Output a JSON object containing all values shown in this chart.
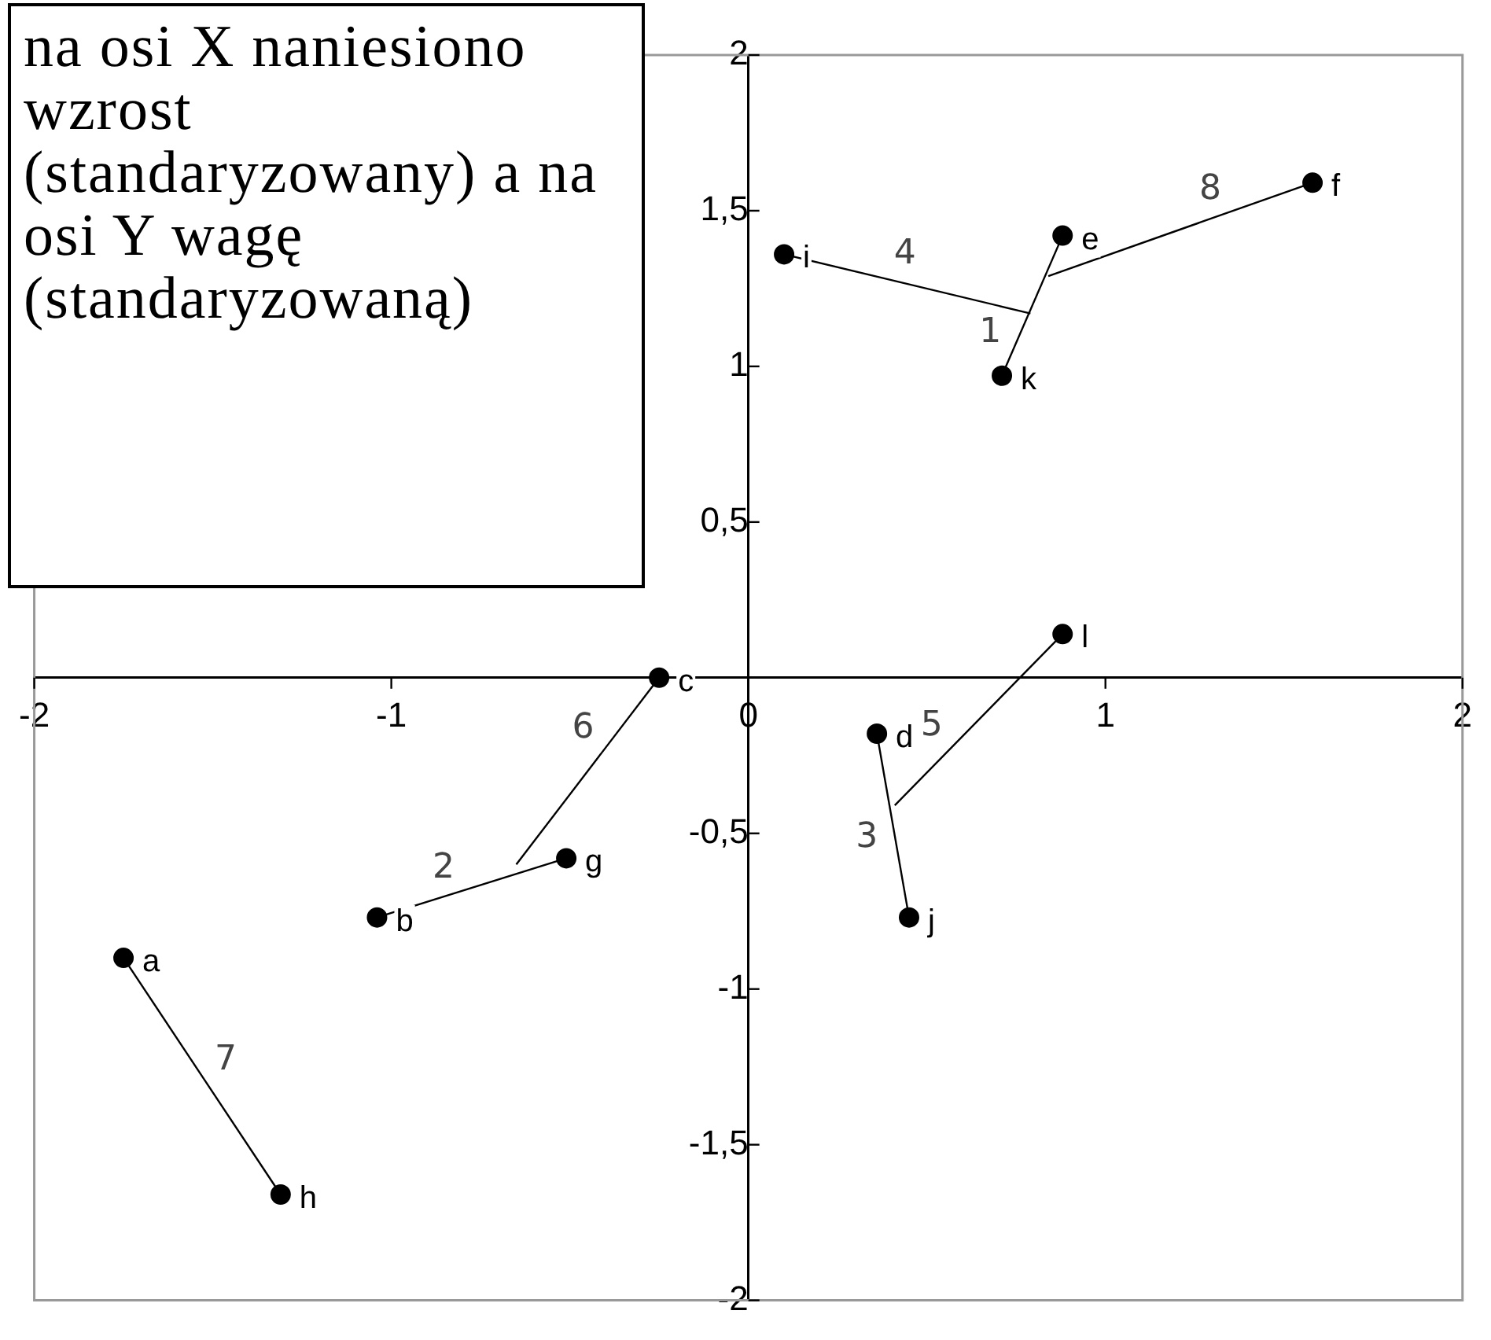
{
  "chart_data": {
    "type": "scatter",
    "xlim": [
      -2,
      2
    ],
    "ylim": [
      -2,
      2
    ],
    "xticks": [
      -2,
      -1,
      {
        "value": 0,
        "label": "0"
      },
      1,
      2
    ],
    "yticks": [
      -2,
      {
        "value": -1.5,
        "label": "-1,5"
      },
      -1,
      {
        "value": -0.5,
        "label": "-0,5"
      },
      {
        "value": 0,
        "label": null
      },
      {
        "value": 0.5,
        "label": "0,5"
      },
      1,
      {
        "value": 1.5,
        "label": "1,5"
      },
      2
    ],
    "grid": false,
    "legend": false,
    "marker": "circle",
    "series": [
      {
        "color": "#000000",
        "x": [
          -1.75,
          -1.04,
          -0.25,
          0.36,
          0.88,
          1.58,
          -0.51,
          -1.31,
          0.1,
          0.45,
          0.71,
          0.88
        ],
        "values": [
          -0.9,
          -0.77,
          0.0,
          -0.18,
          1.42,
          1.59,
          -0.58,
          -1.66,
          1.36,
          -0.77,
          0.97,
          0.14
        ],
        "value_labels": [
          "a",
          "b",
          "c",
          "d",
          "e",
          "f",
          "g",
          "h",
          "i",
          "j",
          "k",
          "l"
        ]
      },
      {
        "type": "line",
        "marker": "none",
        "color": "#000000",
        "x": [
          -1.75,
          -1.31
        ],
        "values": [
          -0.9,
          -1.66
        ]
      },
      {
        "type": "line",
        "marker": "none",
        "color": "#000000",
        "x": [
          -1.04,
          -0.51
        ],
        "values": [
          -0.77,
          -0.58
        ]
      },
      {
        "type": "line",
        "marker": "none",
        "color": "#000000",
        "x": [
          -0.25,
          -0.65
        ],
        "values": [
          0.0,
          -0.6
        ]
      },
      {
        "type": "line",
        "marker": "none",
        "color": "#000000",
        "x": [
          0.36,
          0.45
        ],
        "values": [
          -0.18,
          -0.77
        ]
      },
      {
        "type": "line",
        "marker": "none",
        "color": "#000000",
        "x": [
          0.88,
          0.41
        ],
        "values": [
          0.14,
          -0.41
        ]
      },
      {
        "type": "line",
        "marker": "none",
        "color": "#000000",
        "x": [
          0.88,
          0.71
        ],
        "values": [
          1.42,
          0.97
        ]
      },
      {
        "type": "line",
        "marker": "none",
        "color": "#000000",
        "x": [
          0.1,
          0.79
        ],
        "values": [
          1.36,
          1.17
        ]
      },
      {
        "type": "line",
        "marker": "none",
        "color": "#000000",
        "x": [
          1.58,
          0.84
        ],
        "values": [
          1.59,
          1.29
        ]
      }
    ],
    "annotations": [
      "na osi X naniesiono wzrost (standaryzowany) a na osi Y wagę (standaryzowaną)",
      {
        "text": "7",
        "x": -1.53,
        "y": -1.28
      },
      {
        "text": "2",
        "x": -0.83,
        "y": -0.7
      },
      {
        "text": "6",
        "x": -0.4,
        "y": -0.22
      },
      {
        "text": "3",
        "x": 0.41,
        "y": -0.5
      },
      {
        "text": "5",
        "x": 0.57,
        "y": -0.22
      },
      {
        "text": "1",
        "x": 0.75,
        "y": 1.07
      },
      {
        "text": "4",
        "x": 0.42,
        "y": 1.27
      },
      {
        "text": "8",
        "x": 1.32,
        "y": 1.48
      }
    ]
  }
}
